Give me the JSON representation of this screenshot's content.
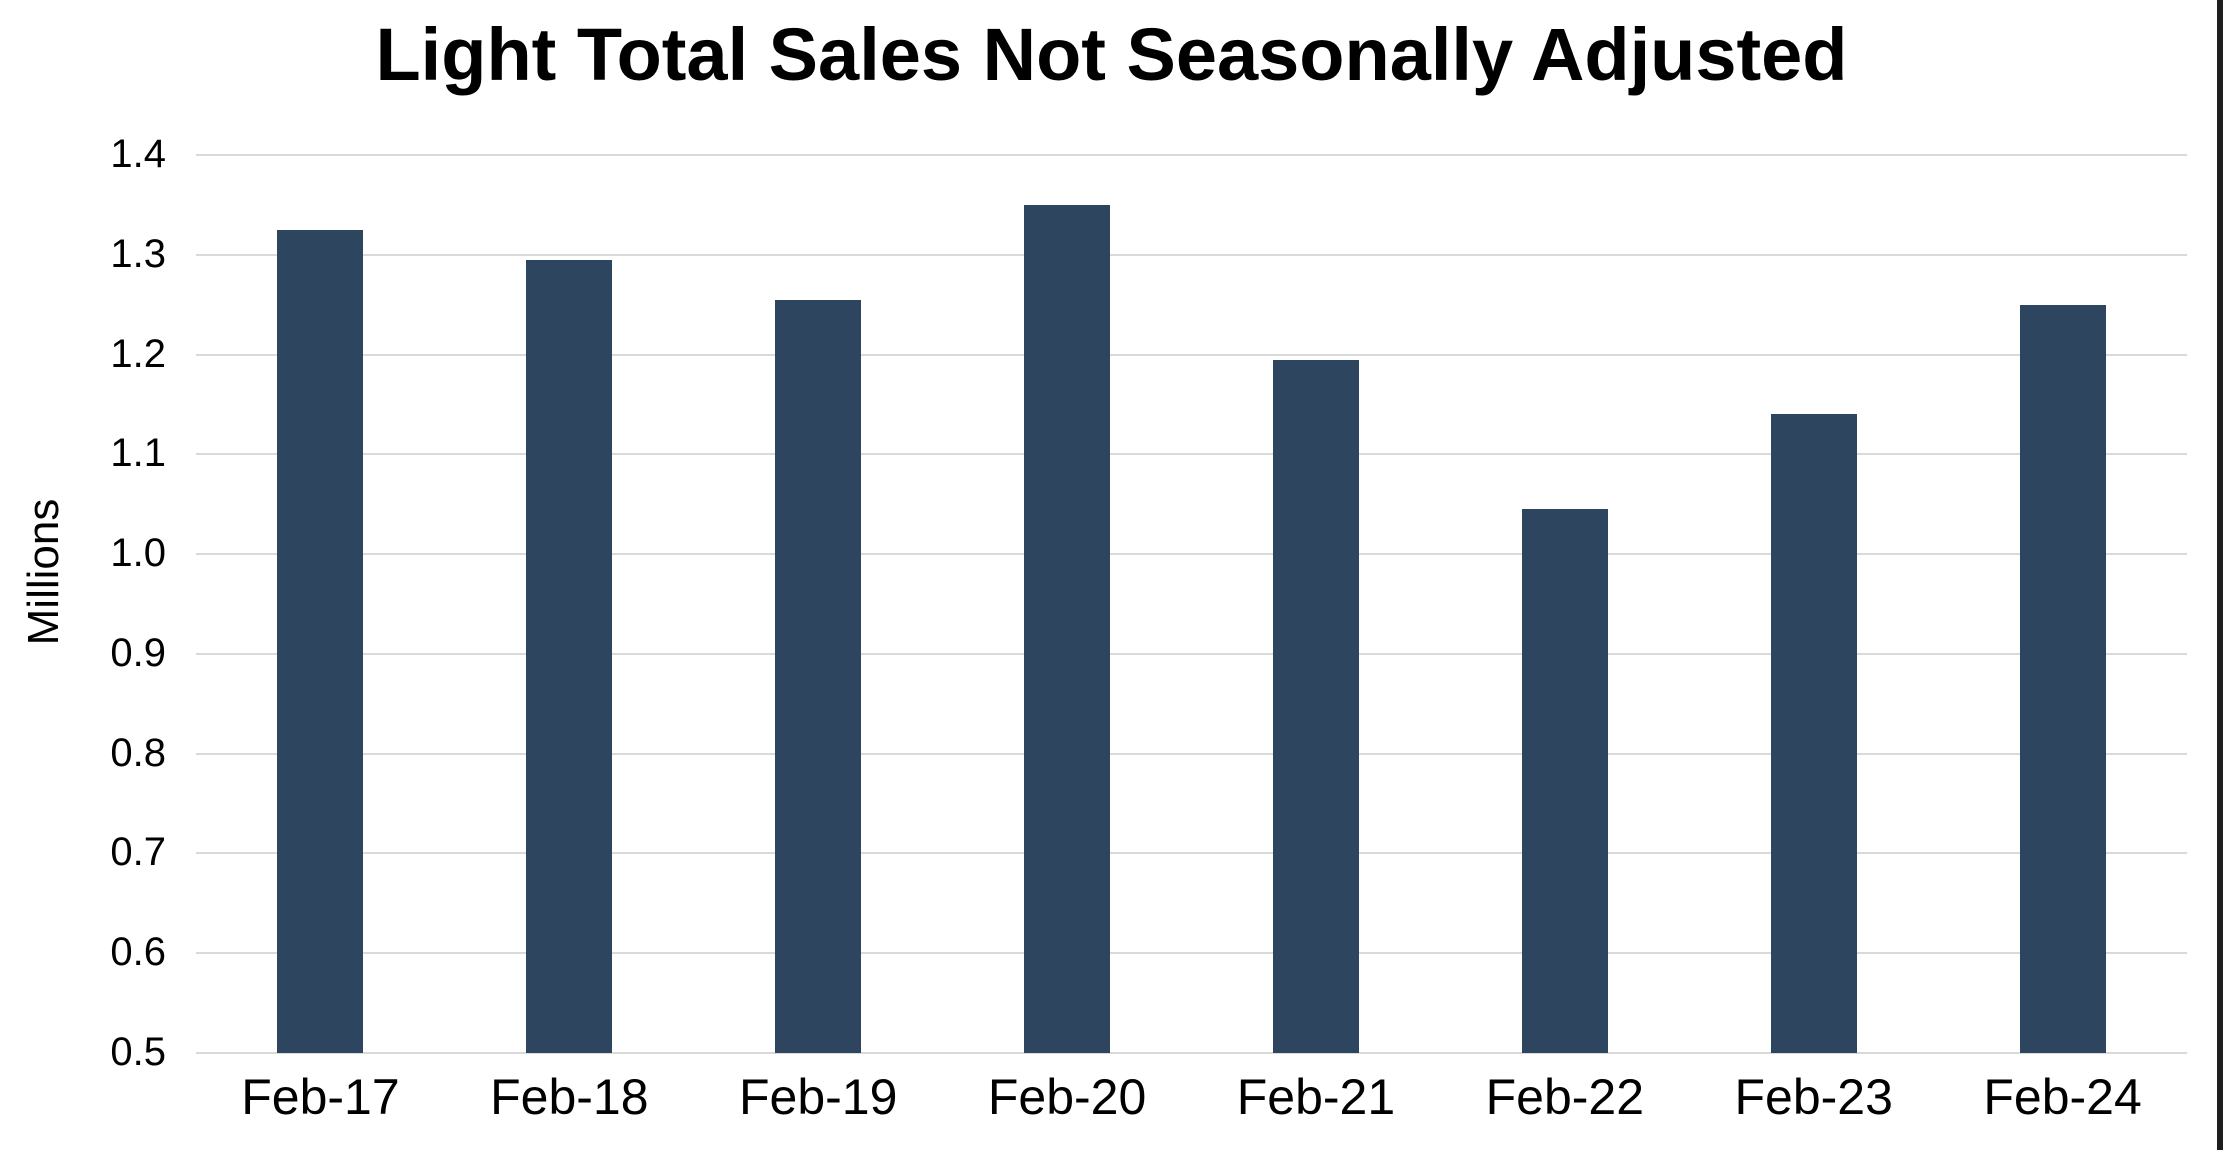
{
  "title": "Light Total Sales Not Seasonally Adjusted",
  "colors": {
    "bar": "#2D455E",
    "gridline": "#D9D9D9",
    "text": "#000000",
    "background": "#FFFFFF",
    "right_edge": "#1E1E1E"
  },
  "chart_data": {
    "type": "bar",
    "title": "Light Total Sales Not Seasonally Adjusted",
    "categories": [
      "Feb-17",
      "Feb-18",
      "Feb-19",
      "Feb-20",
      "Feb-21",
      "Feb-22",
      "Feb-23",
      "Feb-24"
    ],
    "values": [
      1.325,
      1.295,
      1.255,
      1.35,
      1.195,
      1.045,
      1.14,
      1.25
    ],
    "xlabel": "",
    "ylabel": "Millions",
    "ylim": [
      0.5,
      1.4
    ],
    "ytick_step": 0.1,
    "ytick_labels": [
      "1.4",
      "1.3",
      "1.2",
      "1.1",
      "1.0",
      "0.9",
      "0.8",
      "0.7",
      "0.6",
      "0.5"
    ],
    "grid": true,
    "legend": false
  }
}
